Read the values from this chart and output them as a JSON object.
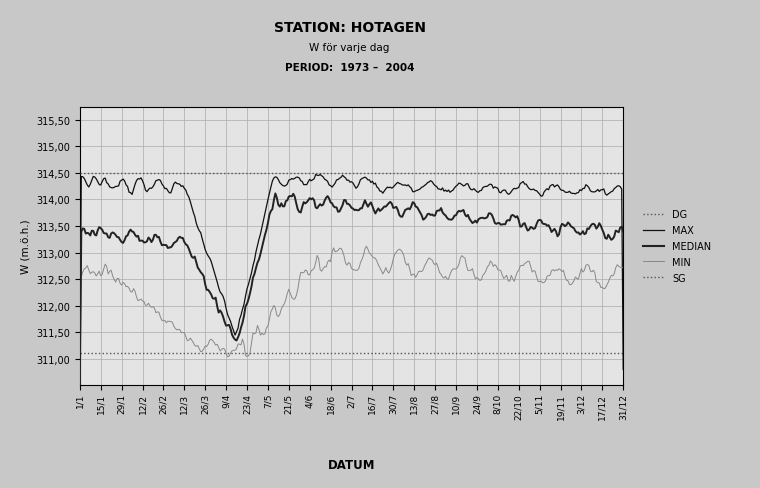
{
  "title1": "STATION: HOTAGEN",
  "title2": "W för varje dag",
  "title3": "PERIOD:  1973 –  2004",
  "xlabel": "DATUM",
  "ylabel": "W (m.ö.h.)",
  "ylim": [
    310.5,
    315.75
  ],
  "yticks": [
    311.0,
    311.5,
    312.0,
    312.5,
    313.0,
    313.5,
    314.0,
    314.5,
    315.0,
    315.5
  ],
  "xtick_labels": [
    "1/1",
    "15/1",
    "29/1",
    "12/2",
    "26/2",
    "12/3",
    "26/3",
    "9/4",
    "23/4",
    "7/5",
    "21/5",
    "4/6",
    "18/6",
    "2/7",
    "16/7",
    "30/7",
    "13/8",
    "27/8",
    "10/9",
    "24/9",
    "8/10",
    "22/10",
    "5/11",
    "19/11",
    "3/12",
    "17/12",
    "31/12"
  ],
  "DG_level": 314.5,
  "SG_level": 311.1,
  "fig_bg": "#c8c8c8",
  "plot_bg": "#e4e4e4",
  "grid_color": "#aaaaaa",
  "max_color": "#111111",
  "median_color": "#222222",
  "min_color": "#888888",
  "dg_sg_color": "#555555"
}
